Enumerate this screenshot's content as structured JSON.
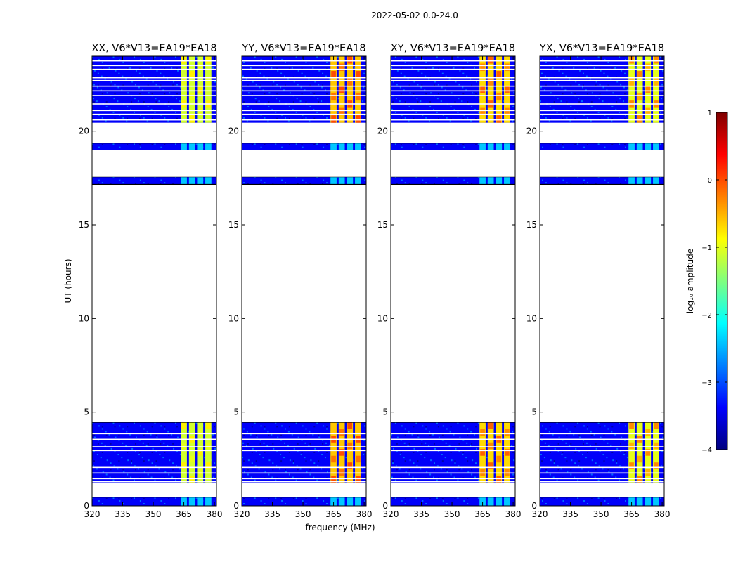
{
  "figure": {
    "suptitle": "2022-05-02 0.0-24.0",
    "xlabel": "frequency (MHz)",
    "ylabel": "UT (hours)"
  },
  "chart_data": {
    "type": "heatmap",
    "title": "2022-05-02 0.0-24.0",
    "xlabel": "frequency (MHz)",
    "ylabel": "UT (hours)",
    "xlim": [
      320,
      381
    ],
    "ylim": [
      0,
      24
    ],
    "xticks": [
      320,
      335,
      350,
      365,
      380
    ],
    "yticks": [
      0,
      5,
      10,
      15,
      20
    ],
    "panels": [
      {
        "title": "XX, V6*V13=EA19*EA18",
        "rfi_level": -1.1,
        "rfi_peak": -0.8
      },
      {
        "title": "YY, V6*V13=EA19*EA18",
        "rfi_level": -0.6,
        "rfi_peak": 0.0
      },
      {
        "title": "XY, V6*V13=EA19*EA18",
        "rfi_level": -0.7,
        "rfi_peak": -0.1
      },
      {
        "title": "YX, V6*V13=EA19*EA18",
        "rfi_level": -1.0,
        "rfi_peak": -0.3
      }
    ],
    "data_segments_hours": [
      [
        0.0,
        0.45
      ],
      [
        1.25,
        4.45
      ],
      [
        17.15,
        17.55
      ],
      [
        19.0,
        19.35
      ],
      [
        20.45,
        24.0
      ]
    ],
    "flagged_lines_hours": [
      1.3,
      1.45,
      1.75,
      2.05,
      2.95,
      3.15,
      3.55,
      3.85,
      20.6,
      20.9,
      21.1,
      21.45,
      21.9,
      22.15,
      22.4,
      22.7,
      22.85,
      23.3,
      23.5,
      23.75
    ],
    "background_level": -3.4,
    "rfi_bands_mhz": [
      [
        363.5,
        366.5
      ],
      [
        367.5,
        370.5
      ],
      [
        371.5,
        374.5
      ],
      [
        375.5,
        378.5
      ]
    ],
    "colorbar": {
      "label": "log₁₀ amplitude",
      "range": [
        -4,
        1
      ],
      "ticks": [
        "1",
        "0",
        "−1",
        "−2",
        "−3",
        "−4"
      ],
      "colormap": [
        "#00007f",
        "#0000ff",
        "#007fff",
        "#00ffff",
        "#7fff7f",
        "#ffff00",
        "#ff7f00",
        "#ff0000",
        "#7f0000"
      ]
    }
  }
}
